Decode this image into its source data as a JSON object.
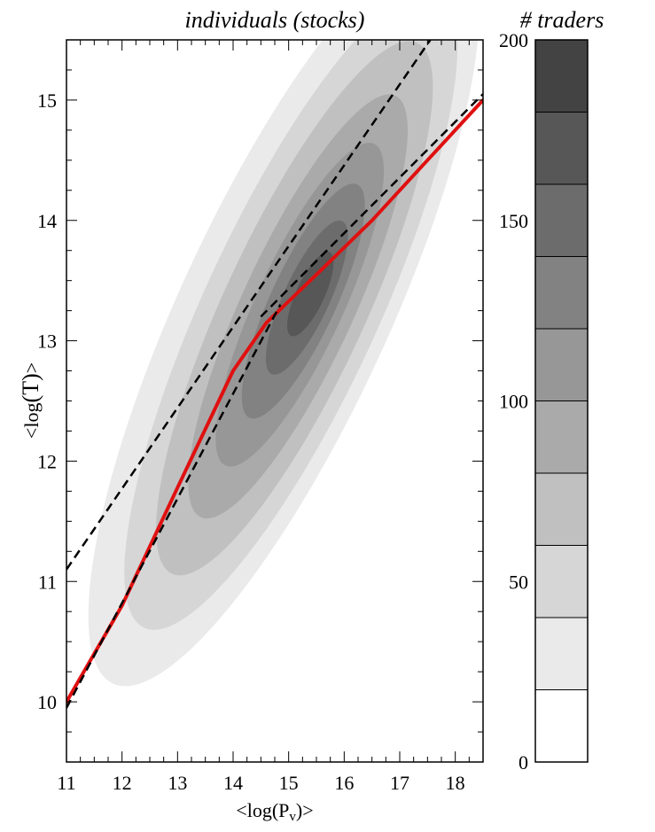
{
  "chart_data": {
    "type": "heatmap",
    "title": "individuals (stocks)",
    "xlabel_prefix": "<log(P",
    "xlabel_sub": "v",
    "xlabel_suffix": ")>",
    "ylabel_prefix": "<log",
    "ylabel_inner": "(T)",
    "ylabel_suffix": ">",
    "xlim": [
      11,
      18.5
    ],
    "ylim": [
      9.5,
      15.5
    ],
    "x_ticks": [
      11,
      12,
      13,
      14,
      15,
      16,
      17,
      18
    ],
    "y_ticks": [
      10,
      11,
      12,
      13,
      14,
      15
    ],
    "density_contours": {
      "description_levels": [
        20,
        40,
        60,
        80,
        100,
        120,
        140,
        160,
        180
      ],
      "center": [
        15.2,
        13.3
      ],
      "principal_axis_slope": 1.0
    },
    "series": [
      {
        "kind": "fit",
        "color": "#e01010",
        "points": [
          [
            11.0,
            10.0
          ],
          [
            12.0,
            10.8
          ],
          [
            13.0,
            11.78
          ],
          [
            14.0,
            12.75
          ],
          [
            14.6,
            13.15
          ],
          [
            15.5,
            13.55
          ],
          [
            16.5,
            14.0
          ],
          [
            17.5,
            14.5
          ],
          [
            18.5,
            15.0
          ]
        ]
      },
      {
        "kind": "dashed-line",
        "color": "#000000",
        "points": [
          [
            11.0,
            9.95
          ],
          [
            14.85,
            13.3
          ]
        ]
      },
      {
        "kind": "dashed-line",
        "color": "#000000",
        "points": [
          [
            11.0,
            11.1
          ],
          [
            17.55,
            15.5
          ]
        ]
      },
      {
        "kind": "dashed-line",
        "color": "#000000",
        "points": [
          [
            14.5,
            13.2
          ],
          [
            18.5,
            15.05
          ]
        ]
      }
    ],
    "colorbar": {
      "title": "# traders",
      "min": 0,
      "max": 200,
      "step": 20,
      "tick_values": [
        0,
        50,
        100,
        150,
        200
      ],
      "colors": [
        "#ffffff",
        "#eaeaea",
        "#d6d6d6",
        "#c0c0c0",
        "#aaaaaa",
        "#979797",
        "#828282",
        "#6c6c6c",
        "#575757",
        "#434343"
      ]
    }
  }
}
